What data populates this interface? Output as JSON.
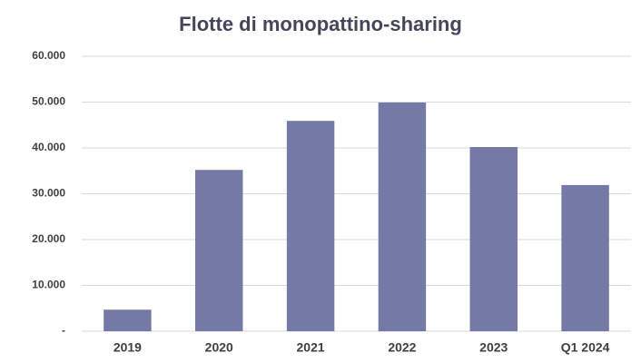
{
  "chart_data": {
    "type": "bar",
    "title": "Flotte di monopattino-sharing",
    "categories": [
      "2019",
      "2020",
      "2021",
      "2022",
      "2023",
      "Q1 2024"
    ],
    "values": [
      4700,
      35200,
      45900,
      49900,
      40200,
      31900
    ],
    "color": "#7479a6",
    "ylim": [
      0,
      60000
    ],
    "yticks": [
      {
        "value": 0,
        "label": "-"
      },
      {
        "value": 10000,
        "label": "10.000"
      },
      {
        "value": 20000,
        "label": "20.000"
      },
      {
        "value": 30000,
        "label": "30.000"
      },
      {
        "value": 40000,
        "label": "40.000"
      },
      {
        "value": 50000,
        "label": "50.000"
      },
      {
        "value": 60000,
        "label": "60.000"
      }
    ],
    "grid": true
  }
}
